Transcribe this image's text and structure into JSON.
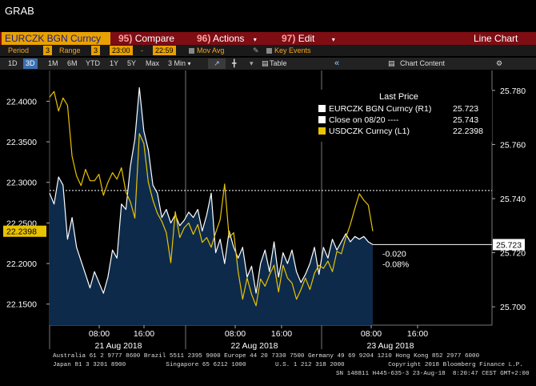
{
  "window_title": "GRAB",
  "toolbar": {
    "ticker": "EURCZK BGN Curncy",
    "compare_num": "95)",
    "compare_label": "Compare",
    "actions_num": "96)",
    "actions_label": "Actions",
    "edit_num": "97)",
    "edit_label": "Edit",
    "chart_type": "Line Chart"
  },
  "period_bar": {
    "period_label": "Period",
    "period_value": "3",
    "range_label": "Range",
    "range_value": "3",
    "start_time": "23:00",
    "sep": "-",
    "end_time": "22:59",
    "mov_avg": "Mov Avg",
    "key_events": "Key Events"
  },
  "range_bar": {
    "buttons": [
      "1D",
      "3D",
      "1M",
      "6M",
      "YTD",
      "1Y",
      "5Y",
      "Max"
    ],
    "selected": "3D",
    "interval": "3 Min",
    "table": "Table",
    "chart_content": "Chart Content"
  },
  "legend": {
    "title": "Last Price",
    "rows": [
      {
        "label": "EURCZK BGN Curncy  (R1)",
        "value": "25.723",
        "color": "#ffffff"
      },
      {
        "label": "Close on 08/20 ----",
        "value": "25.743",
        "color": "#ffffff"
      },
      {
        "label": "USDCZK Curncy  (L1)",
        "value": "22.2398",
        "color": "#e8c300"
      }
    ]
  },
  "annotations": {
    "change_abs": "-0.020",
    "change_pct": "-0.08%",
    "last_right": "25.723",
    "last_left": "22.2398"
  },
  "chart_data": {
    "type": "line",
    "left_axis": {
      "ticks": [
        "22.4000",
        "22.3500",
        "22.3000",
        "22.2500",
        "22.2000",
        "22.1500"
      ],
      "range": [
        22.13,
        22.43
      ]
    },
    "right_axis": {
      "ticks": [
        "25.780",
        "25.760",
        "25.740",
        "25.720",
        "25.700"
      ],
      "range": [
        25.695,
        25.785
      ]
    },
    "x_ticks": [
      "08:00",
      "16:00",
      "08:00",
      "16:00",
      "08:00",
      "16:00"
    ],
    "date_labels": [
      "21 Aug 2018",
      "22 Aug 2018",
      "23 Aug 2018"
    ],
    "reference_line": 25.743,
    "series": [
      {
        "name": "EURCZK BGN Curncy",
        "axis": "right",
        "color": "#ffffff",
        "values": [
          25.742,
          25.738,
          25.748,
          25.745,
          25.725,
          25.733,
          25.722,
          25.717,
          25.712,
          25.707,
          25.713,
          25.709,
          25.705,
          25.711,
          25.721,
          25.718,
          25.738,
          25.736,
          25.752,
          25.762,
          25.781,
          25.765,
          25.758,
          25.745,
          25.742,
          25.733,
          25.736,
          25.731,
          25.734,
          25.73,
          25.732,
          25.735,
          25.733,
          25.736,
          25.728,
          25.734,
          25.742,
          25.72,
          25.725,
          25.716,
          25.728,
          25.722,
          25.718,
          25.722,
          25.711,
          25.715,
          25.705,
          25.716,
          25.721,
          25.713,
          25.724,
          25.711,
          25.72,
          25.716,
          25.721,
          25.713,
          25.709,
          25.712,
          25.716,
          25.722,
          25.712,
          25.722,
          25.718,
          25.725,
          25.721,
          25.724,
          25.727,
          25.724,
          25.726,
          25.725,
          25.726,
          25.724,
          25.723
        ]
      },
      {
        "name": "USDCZK Curncy",
        "axis": "left",
        "color": "#e8c300",
        "values": [
          22.405,
          22.412,
          22.388,
          22.404,
          22.395,
          22.332,
          22.308,
          22.296,
          22.316,
          22.302,
          22.302,
          22.31,
          22.284,
          22.3,
          22.312,
          22.304,
          22.318,
          22.288,
          22.276,
          22.256,
          22.36,
          22.348,
          22.3,
          22.278,
          22.262,
          22.252,
          22.238,
          22.201,
          22.264,
          22.232,
          22.244,
          22.25,
          22.236,
          22.248,
          22.226,
          22.232,
          22.22,
          22.238,
          22.254,
          22.298,
          22.232,
          22.238,
          22.19,
          22.156,
          22.182,
          22.162,
          22.148,
          22.181,
          22.172,
          22.186,
          22.198,
          22.165,
          22.198,
          22.182,
          22.176,
          22.156,
          22.168,
          22.182,
          22.168,
          22.188,
          22.198,
          22.194,
          22.203,
          22.19,
          22.215,
          22.212,
          22.232,
          22.248,
          22.268,
          22.286,
          22.278,
          22.272,
          22.2398
        ]
      }
    ]
  }
}
